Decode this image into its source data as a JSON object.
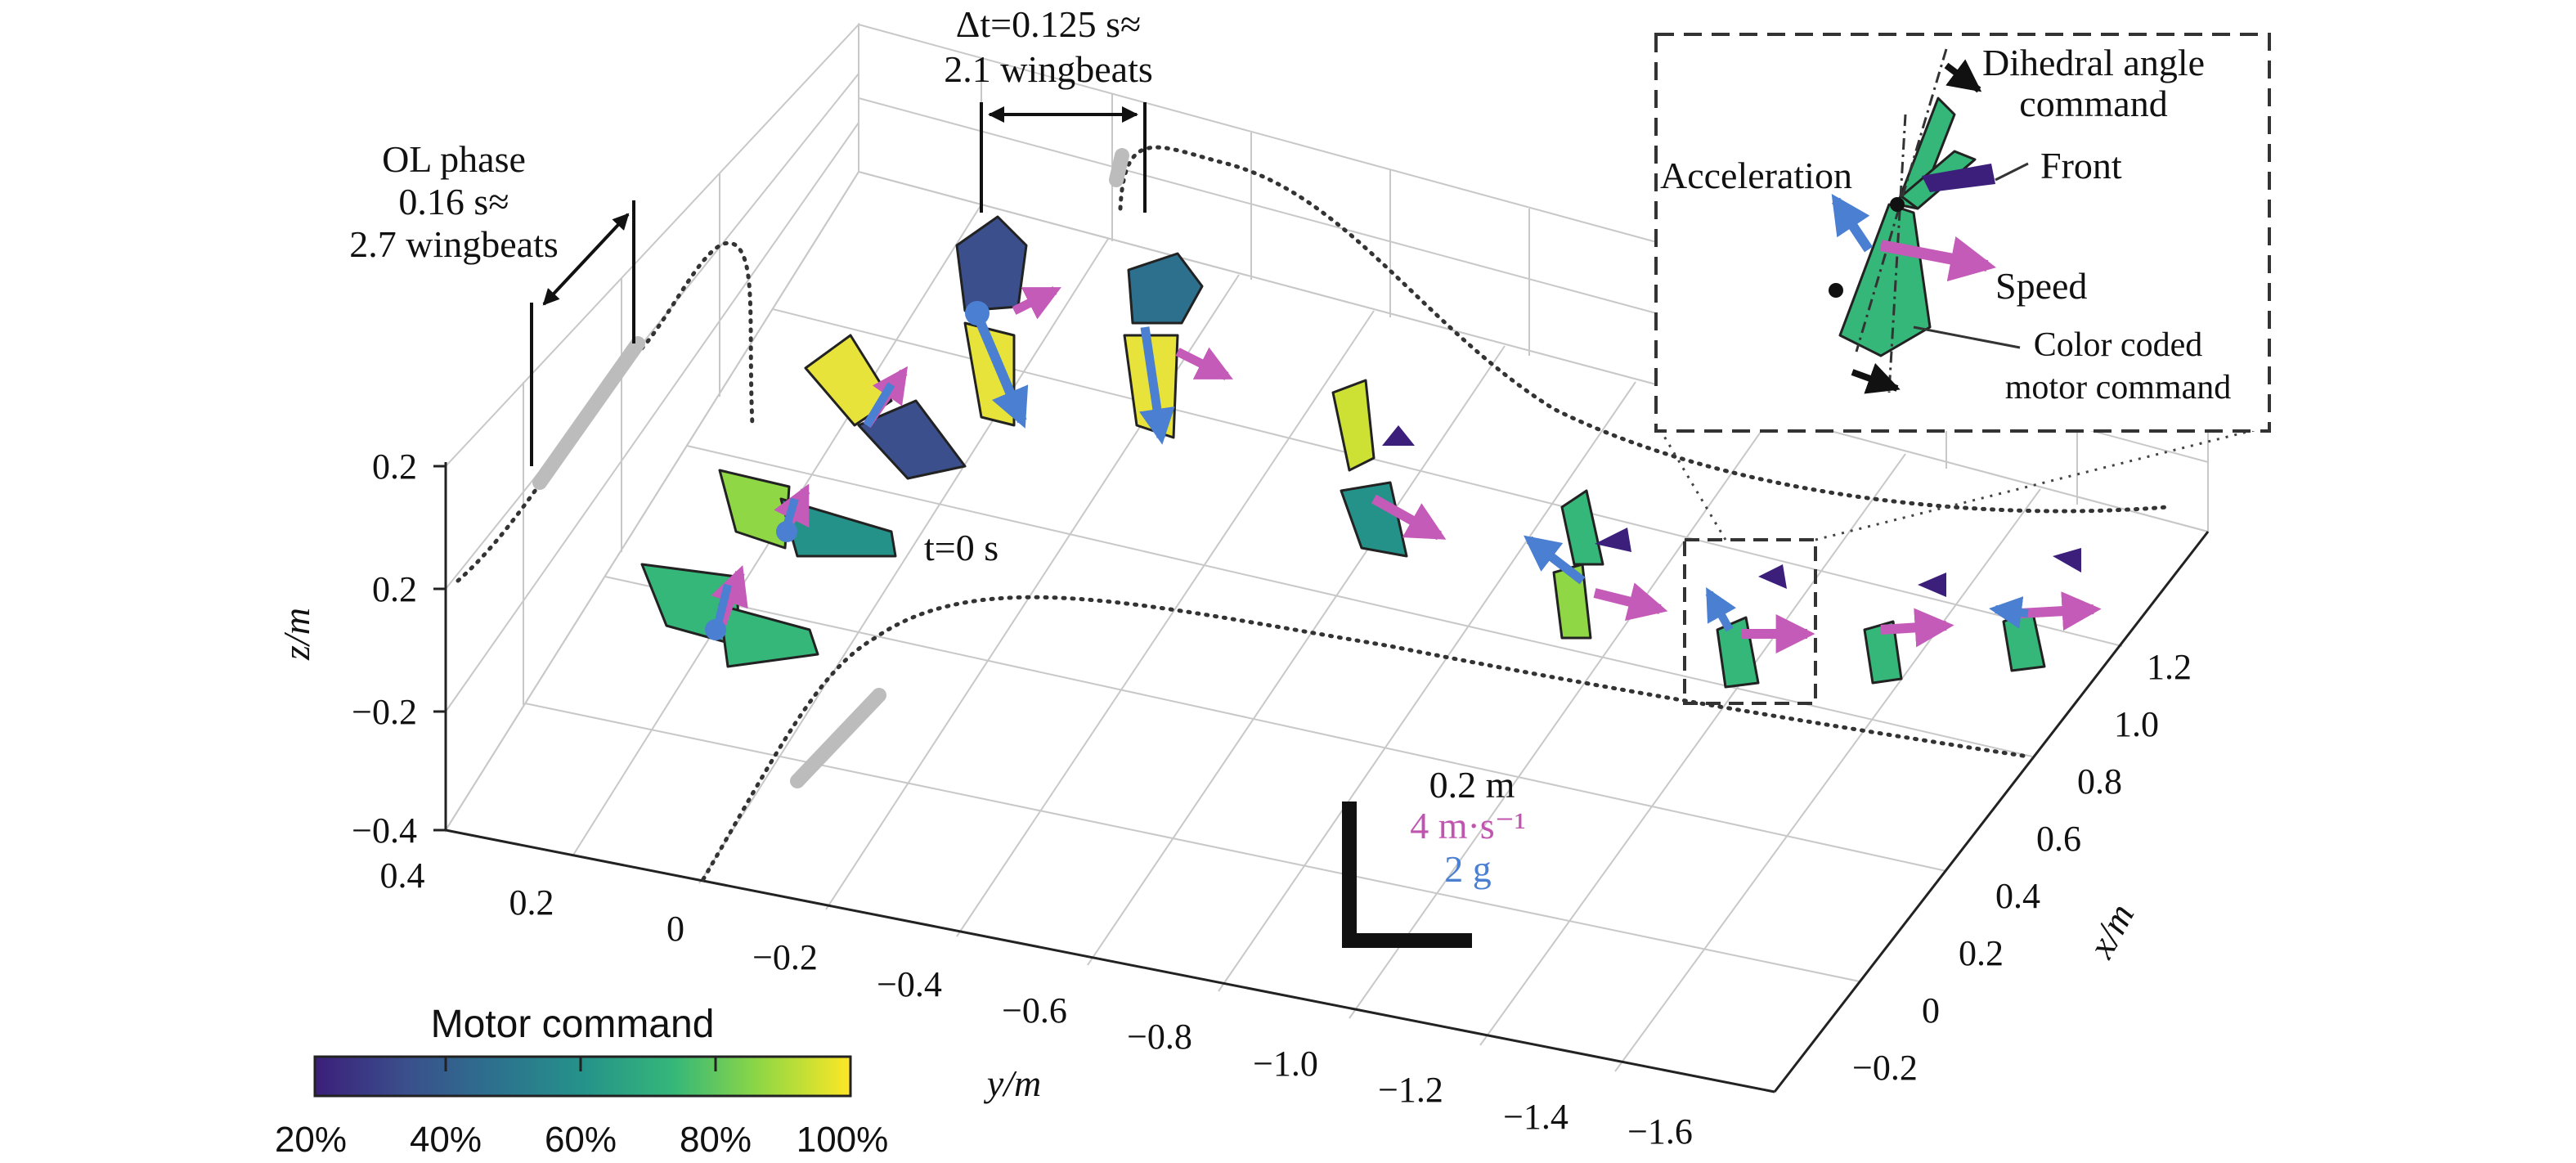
{
  "colors": {
    "speed": "#c55bb8",
    "acceleration": "#4a7fd1",
    "scale_speed_text": "#c055b0",
    "scale_acc_text": "#4a7fd1",
    "colormap": [
      "#3b1f7a",
      "#3a4f8c",
      "#2d708e",
      "#25928a",
      "#35b779",
      "#8fd744",
      "#fde725"
    ]
  },
  "labels": {
    "ol_phase": [
      "OL phase",
      "0.16 s≈",
      "2.7 wingbeats"
    ],
    "dt_line1": "Δt=0.125 s≈",
    "dt_line2": "2.1 wingbeats",
    "t0": "t=0 s",
    "scale": [
      "0.2 m",
      "4 m·s⁻¹",
      "2 g"
    ],
    "inset": {
      "dihedral": [
        "Dihedral angle",
        "command"
      ],
      "acceleration": "Acceleration",
      "front": "Front",
      "speed": "Speed",
      "color_coded": [
        "Color coded",
        "motor command"
      ]
    }
  },
  "axes": {
    "z_label": "z/m",
    "y_label": "y/m",
    "x_label": "x/m",
    "z_ticks": [
      "0.2",
      "0.2",
      "−0.2",
      "−0.4"
    ],
    "y_ticks": [
      "0.4",
      "0.2",
      "0",
      "−0.2",
      "−0.4",
      "−0.6",
      "−0.8",
      "−1.0",
      "−1.2",
      "−1.4",
      "−1.6"
    ],
    "x_ticks": [
      "−0.2",
      "0",
      "0.2",
      "0.4",
      "0.6",
      "0.8",
      "1.0",
      "1.2"
    ]
  },
  "colorbar": {
    "title": "Motor command",
    "ticks": [
      "20%",
      "40%",
      "60%",
      "80%",
      "100%"
    ]
  }
}
